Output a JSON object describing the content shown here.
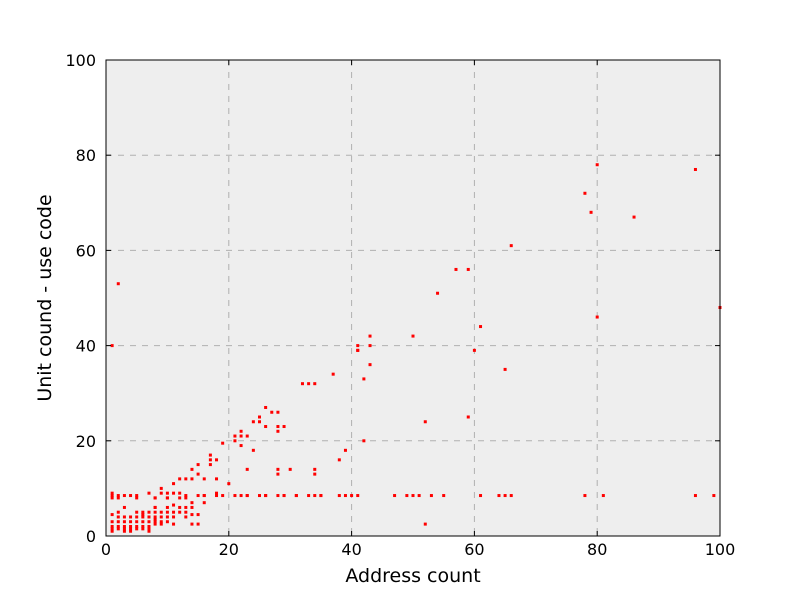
{
  "chart_data": {
    "type": "scatter",
    "title": "",
    "xlabel": "Address count",
    "ylabel": "Unit cound - use code",
    "xlim": [
      0,
      100
    ],
    "ylim": [
      0,
      100
    ],
    "xticks": [
      0,
      20,
      40,
      60,
      80,
      100
    ],
    "yticks": [
      0,
      20,
      40,
      60,
      80,
      100
    ],
    "grid": true,
    "legend": "none",
    "background_color": "#eeeeee",
    "marker_color": "#ff0000",
    "x": [
      1,
      1,
      1,
      1,
      1,
      1,
      1,
      1,
      2,
      2,
      2,
      2,
      2,
      2,
      2,
      3,
      3,
      3,
      3,
      3,
      3,
      3,
      4,
      4,
      4,
      4,
      4,
      4,
      5,
      5,
      5,
      5,
      5,
      5,
      5,
      6,
      6,
      6,
      6,
      6,
      6,
      7,
      7,
      7,
      7,
      7,
      7,
      7,
      8,
      8,
      8,
      8,
      8,
      8,
      8,
      8,
      8,
      9,
      9,
      9,
      9,
      9,
      9,
      10,
      10,
      10,
      10,
      10,
      10,
      10,
      11,
      11,
      11,
      11,
      11,
      11,
      12,
      12,
      12,
      12,
      12,
      13,
      13,
      13,
      13,
      13,
      13,
      14,
      14,
      14,
      14,
      14,
      14,
      15,
      15,
      15,
      15,
      15,
      16,
      16,
      16,
      16,
      17,
      17,
      17,
      18,
      18,
      18,
      18,
      19,
      19,
      20,
      21,
      21,
      21,
      22,
      22,
      22,
      22,
      23,
      23,
      23,
      23,
      24,
      24,
      25,
      25,
      25,
      26,
      26,
      26,
      26,
      27,
      28,
      28,
      28,
      28,
      28,
      28,
      29,
      29,
      29,
      30,
      31,
      31,
      32,
      33,
      33,
      34,
      34,
      34,
      34,
      35,
      35,
      37,
      38,
      38,
      39,
      39,
      40,
      41,
      41,
      41,
      41,
      42,
      42,
      43,
      43,
      43,
      1,
      2,
      47,
      49,
      50,
      50,
      51,
      52,
      52,
      53,
      54,
      55,
      57,
      59,
      59,
      60,
      61,
      61,
      64,
      65,
      65,
      66,
      66,
      78,
      78,
      79,
      80,
      80,
      81,
      86,
      96,
      96,
      99,
      100
    ],
    "y": [
      40,
      9,
      8,
      4.5,
      3,
      2,
      1.5,
      1,
      53,
      8,
      5,
      4,
      3,
      2,
      1.5,
      8.5,
      6,
      4,
      3,
      2,
      1.5,
      1,
      8.5,
      4,
      3,
      2,
      1.5,
      1,
      8.5,
      8,
      5,
      4,
      3,
      2,
      1.5,
      4.5,
      4,
      3,
      2,
      1.5,
      5,
      4,
      3,
      2,
      1.5,
      1,
      5,
      9,
      8,
      6,
      5,
      4,
      3.5,
      3,
      2.5,
      8,
      6,
      5,
      4,
      3,
      2.5,
      10,
      9,
      8,
      6,
      5,
      4,
      3,
      9,
      8,
      6.5,
      5,
      4,
      2.5,
      11,
      9,
      8,
      6,
      5,
      12,
      9,
      8,
      6,
      5,
      4,
      12,
      8.5,
      7,
      6,
      4.5,
      2.5,
      14,
      12,
      8.5,
      4.5,
      2.5,
      15,
      13,
      8.5,
      7,
      12,
      8.5,
      15,
      17,
      16,
      9,
      8.5,
      16,
      12,
      8.5,
      19.5,
      11,
      8.5,
      21,
      20,
      19,
      8.5,
      22,
      21,
      14,
      8.5,
      21,
      8.5,
      24,
      18,
      8.5,
      25,
      24,
      23,
      8.5,
      8.5,
      27,
      26,
      23,
      22,
      14,
      13,
      8.5,
      26,
      23,
      8.5,
      8.5,
      14,
      8.5,
      8.5,
      32,
      8.5,
      32,
      14,
      13,
      8.5,
      32,
      8.5,
      8.5,
      34,
      16,
      8.5,
      18,
      8.5,
      8.5,
      40,
      39,
      39,
      8.5,
      33,
      20,
      42,
      40,
      36,
      8.5,
      8.5,
      8.5,
      8.5,
      8.5,
      42,
      8.5,
      24,
      2.5,
      8.5,
      51,
      8.5,
      56,
      56,
      25,
      39,
      44,
      8.5,
      8.5,
      35,
      8.5,
      61,
      8.5,
      72,
      8.5,
      68,
      78,
      46,
      8.5,
      67,
      77,
      8.5,
      8.5,
      48
    ]
  }
}
